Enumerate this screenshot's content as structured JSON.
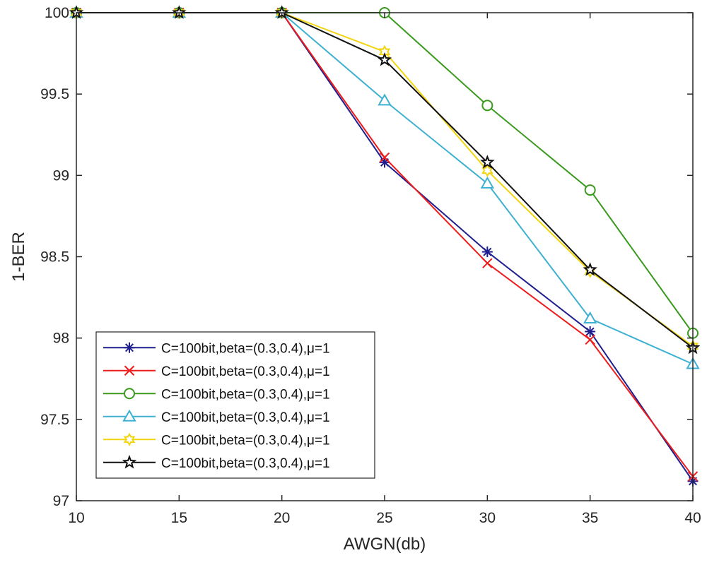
{
  "chart_data": {
    "type": "line",
    "title": "",
    "xlabel": "AWGN(db)",
    "ylabel": "1-BER",
    "xlim": [
      10,
      40
    ],
    "ylim": [
      97,
      100
    ],
    "xticks": [
      10,
      15,
      20,
      25,
      30,
      35,
      40
    ],
    "yticks": [
      97,
      97.5,
      98,
      98.5,
      99,
      99.5,
      100
    ],
    "ytick_labels": [
      "97",
      "97.5",
      "98",
      "98.5",
      "99",
      "99.5",
      "100"
    ],
    "grid": false,
    "legend_position": "bottom-left",
    "x": [
      10,
      15,
      20,
      25,
      30,
      35,
      40
    ],
    "series": [
      {
        "name": "C=100bit,beta=(0.3,0.4),μ=1",
        "color": "#1f1f8f",
        "marker": "asterisk",
        "values": [
          100,
          100,
          100,
          99.08,
          98.53,
          98.04,
          97.12
        ]
      },
      {
        "name": "C=100bit,beta=(0.3,0.4),μ=1",
        "color": "#ee1c1c",
        "marker": "x",
        "values": [
          100,
          100,
          100,
          99.11,
          98.46,
          97.99,
          97.15
        ]
      },
      {
        "name": "C=100bit,beta=(0.3,0.4),μ=1",
        "color": "#3a9a1e",
        "marker": "circle",
        "values": [
          100,
          100,
          100,
          100,
          99.43,
          98.91,
          98.03
        ]
      },
      {
        "name": "C=100bit,beta=(0.3,0.4),μ=1",
        "color": "#3eb0d2",
        "marker": "triangle",
        "values": [
          100,
          100,
          100,
          99.46,
          98.95,
          98.12,
          97.84
        ]
      },
      {
        "name": "C=100bit,beta=(0.3,0.4),μ=1",
        "color": "#f2d50f",
        "marker": "hexagram",
        "values": [
          100,
          100,
          100,
          99.76,
          99.03,
          98.41,
          97.95
        ]
      },
      {
        "name": "C=100bit,beta=(0.3,0.4),μ=1",
        "color": "#111111",
        "marker": "pentagram",
        "values": [
          100,
          100,
          100,
          99.71,
          99.08,
          98.42,
          97.94
        ]
      }
    ]
  }
}
